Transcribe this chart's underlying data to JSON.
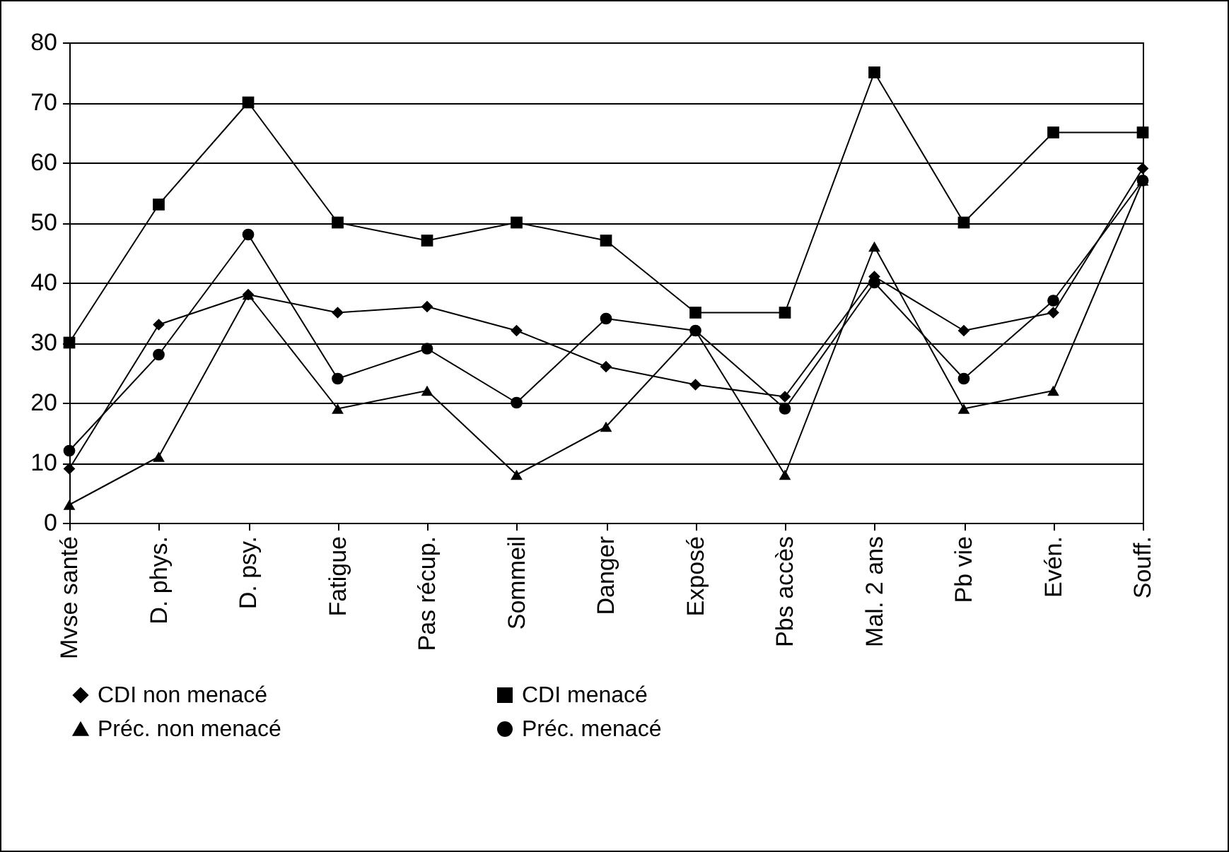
{
  "chart_data": {
    "type": "line",
    "categories": [
      "Mvse santé",
      "D. phys.",
      "D. psy.",
      "Fatigue",
      "Pas récup.",
      "Sommeil",
      "Danger",
      "Exposé",
      "Pbs accès",
      "Mal. 2 ans",
      "Pb vie",
      "Evén.",
      "Souff."
    ],
    "series": [
      {
        "name": "CDI non menacé",
        "color": "#000000",
        "marker": "diamond",
        "values": [
          9,
          33,
          38,
          35,
          36,
          32,
          26,
          23,
          21,
          41,
          32,
          35,
          59
        ]
      },
      {
        "name": "CDI menacé",
        "color": "#000000",
        "marker": "square",
        "values": [
          30,
          53,
          70,
          50,
          47,
          50,
          47,
          35,
          35,
          75,
          50,
          65,
          65
        ]
      },
      {
        "name": "Préc. non menacé",
        "color": "#000000",
        "marker": "triangle",
        "values": [
          3,
          11,
          38,
          19,
          22,
          8,
          16,
          32,
          8,
          46,
          19,
          22,
          57
        ]
      },
      {
        "name": "Préc. menacé",
        "color": "#000000",
        "marker": "circle",
        "values": [
          12,
          28,
          48,
          24,
          29,
          20,
          34,
          32,
          19,
          40,
          24,
          37,
          57
        ]
      }
    ],
    "ylim": [
      0,
      80
    ],
    "yticks": [
      0,
      10,
      20,
      30,
      40,
      50,
      60,
      70,
      80
    ],
    "grid": "y",
    "legend": "bottom",
    "line_style": "solid"
  }
}
